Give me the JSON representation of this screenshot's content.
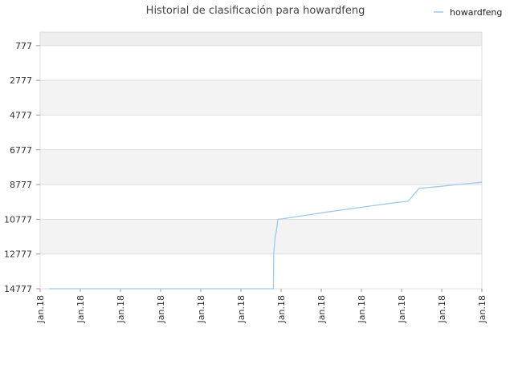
{
  "chart_data": {
    "type": "line",
    "title": "Historial de clasificación para howardfeng",
    "xlabel": "",
    "ylabel": "",
    "y_inverted": true,
    "ylim": [
      14777,
      0
    ],
    "y_ticks": [
      777,
      2777,
      4777,
      6777,
      8777,
      10777,
      12777,
      14777
    ],
    "x_tick_labels": [
      "Jan.18",
      "Jan.18",
      "Jan.18",
      "Jan.18",
      "Jan.18",
      "Jan.18",
      "Jan.18",
      "Jan.18",
      "Jan.18",
      "Jan.18",
      "Jan.18",
      "Jan.18"
    ],
    "legend_position": "top-right",
    "grid": true,
    "series": [
      {
        "name": "howardfeng",
        "color": "#9fc9ee",
        "points": [
          [
            0.02,
            14777
          ],
          [
            0.5,
            14777
          ],
          [
            0.528,
            14777
          ],
          [
            0.529,
            12700
          ],
          [
            0.532,
            11800
          ],
          [
            0.535,
            11400
          ],
          [
            0.538,
            10777
          ],
          [
            0.55,
            10740
          ],
          [
            0.6,
            10550
          ],
          [
            0.65,
            10360
          ],
          [
            0.7,
            10180
          ],
          [
            0.75,
            10000
          ],
          [
            0.8,
            9830
          ],
          [
            0.833,
            9740
          ],
          [
            0.858,
            8990
          ],
          [
            0.9,
            8900
          ],
          [
            0.95,
            8770
          ],
          [
            1.0,
            8640
          ]
        ]
      }
    ]
  }
}
